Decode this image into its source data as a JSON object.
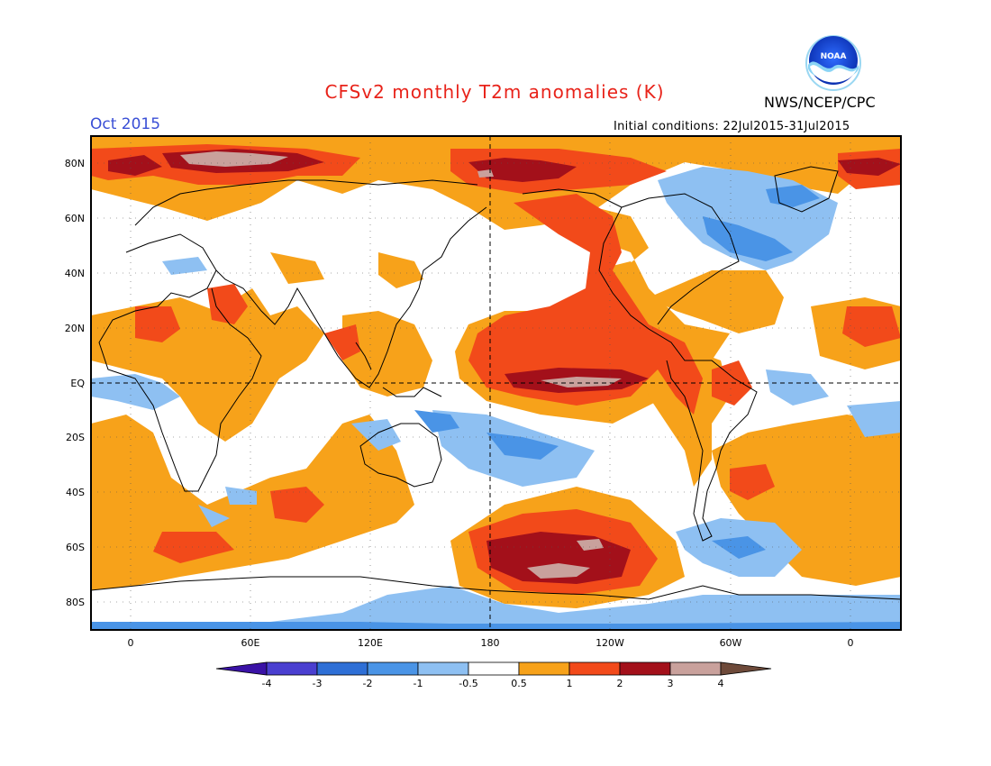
{
  "title": "CFSv2 monthly T2m anomalies (K)",
  "month": "Oct 2015",
  "agency": "NWS/NCEP/CPC",
  "logo_text": "NOAA",
  "initial_conditions": "Initial conditions: 22Jul2015-31Jul2015",
  "lat_labels": [
    "80N",
    "60N",
    "40N",
    "20N",
    "EQ",
    "20S",
    "40S",
    "60S",
    "80S"
  ],
  "lon_labels": [
    "0",
    "60E",
    "120E",
    "180",
    "120W",
    "60W",
    "0"
  ],
  "colorbar": {
    "labels": [
      "-4",
      "-3",
      "-2",
      "-1",
      "-0.5",
      "0.5",
      "1",
      "2",
      "3",
      "4"
    ],
    "colors": [
      "#3a12a6",
      "#4a3fd0",
      "#2e6fd6",
      "#4a94e6",
      "#8ec0f2",
      "#ffffff",
      "#f7a21a",
      "#f24a1a",
      "#a3101a",
      "#c9a19c",
      "#6e4a3a"
    ]
  },
  "colors": {
    "weak_warm": "#f7a21a",
    "warm": "#f24a1a",
    "hot": "#a3101a",
    "very_hot": "#c9a19c",
    "weak_cool": "#8ec0f2",
    "cool": "#4a94e6",
    "cold": "#2e6fd6"
  }
}
